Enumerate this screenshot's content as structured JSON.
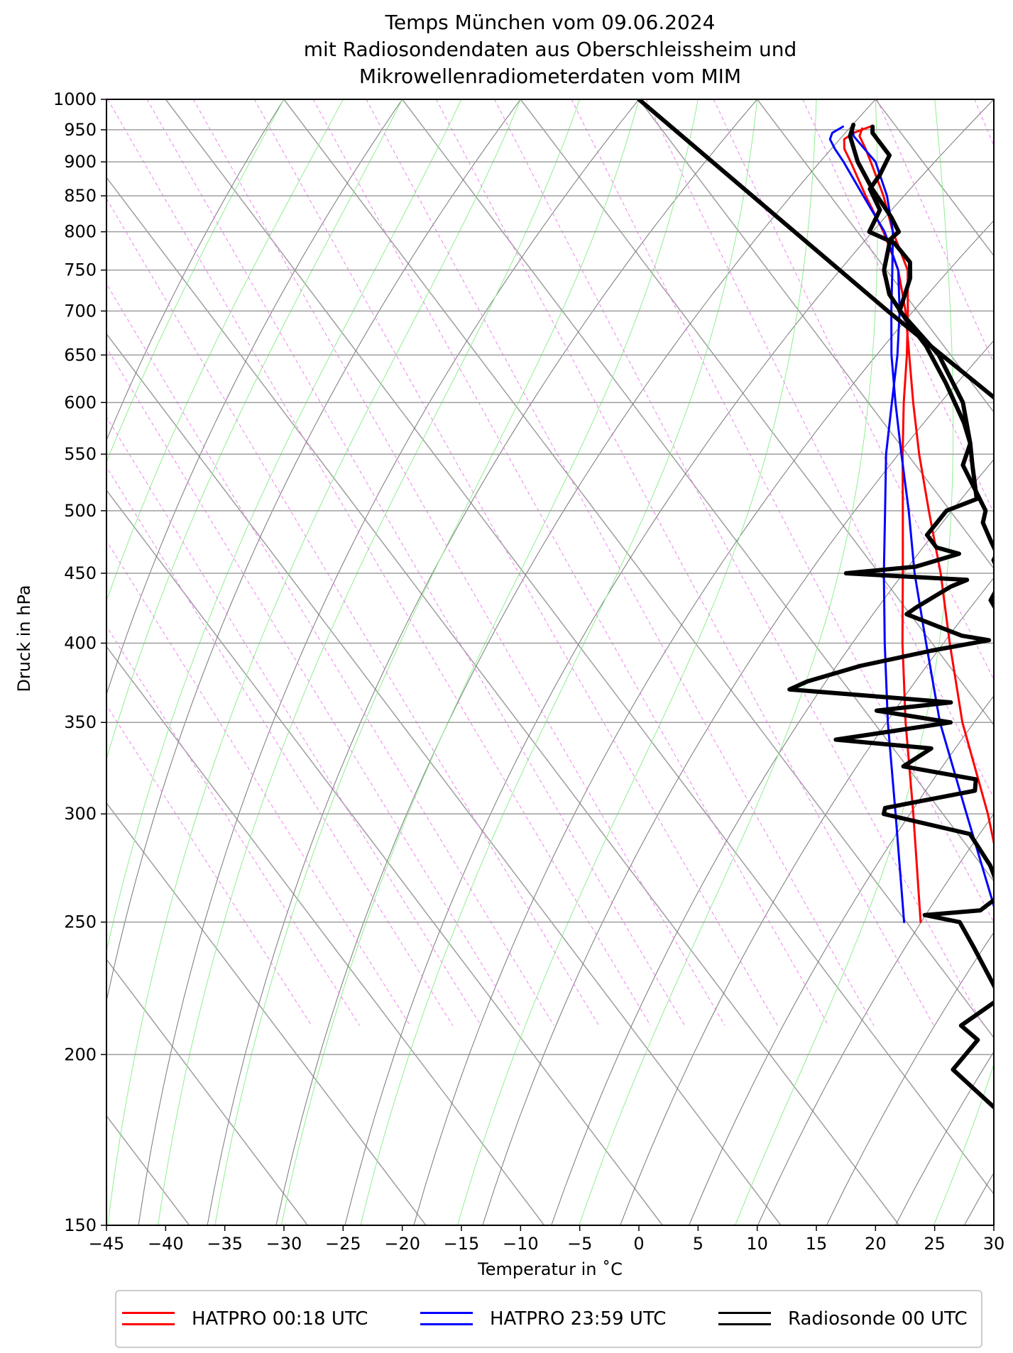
{
  "chart_data": {
    "type": "line",
    "subtype": "skew-T log-p diagram",
    "title_lines": [
      "Temps München vom 09.06.2024",
      "mit Radiosondendaten aus Oberschleissheim und",
      "Mikrowellenradiometerdaten vom MIM"
    ],
    "xlabel": "Temperatur in $^\\circ$C",
    "xlabel_display": "Temperatur in ˚C",
    "ylabel": "Druck in hPa",
    "xlim": [
      -45,
      30
    ],
    "ylim": [
      1000,
      150
    ],
    "y_scale": "log",
    "x_ticks": [
      -45,
      -40,
      -35,
      -30,
      -25,
      -20,
      -15,
      -10,
      -5,
      0,
      5,
      10,
      15,
      20,
      25,
      30
    ],
    "y_ticks": [
      150,
      200,
      250,
      300,
      350,
      400,
      450,
      500,
      550,
      600,
      650,
      700,
      750,
      800,
      850,
      900,
      950,
      1000
    ],
    "grid": true,
    "legend_position": "bottom-center",
    "series": [
      {
        "name": "HATPRO 00:18 UTC",
        "color": "#ff0000",
        "line_width": 3,
        "profiles": [
          [
            [
              952,
              17.0
            ],
            [
              940,
              16.3
            ],
            [
              920,
              16.0
            ],
            [
              900,
              15.6
            ],
            [
              850,
              14.5
            ],
            [
              800,
              13.0
            ],
            [
              750,
              11.8
            ],
            [
              700,
              9.2
            ],
            [
              650,
              6.3
            ],
            [
              600,
              3.0
            ],
            [
              550,
              -0.4
            ],
            [
              500,
              -4.0
            ],
            [
              450,
              -8.0
            ],
            [
              400,
              -12.5
            ],
            [
              350,
              -17.3
            ],
            [
              300,
              -22.5
            ],
            [
              250,
              -28.8
            ]
          ],
          [
            [
              955,
              17.8
            ],
            [
              945,
              16.0
            ],
            [
              935,
              14.8
            ],
            [
              920,
              14.2
            ],
            [
              900,
              13.9
            ],
            [
              850,
              13.0
            ],
            [
              800,
              12.2
            ],
            [
              750,
              11.0
            ],
            [
              700,
              9.0
            ],
            [
              650,
              6.5
            ],
            [
              600,
              3.8
            ],
            [
              550,
              1.0
            ],
            [
              500,
              -1.8
            ],
            [
              450,
              -4.8
            ],
            [
              400,
              -8.5
            ],
            [
              350,
              -12.5
            ],
            [
              300,
              -16.2
            ],
            [
              250,
              -21.2
            ]
          ]
        ]
      },
      {
        "name": "HATPRO 23:59 UTC",
        "color": "#0000ff",
        "line_width": 3,
        "profiles": [
          [
            [
              955,
              15.5
            ],
            [
              945,
              14.2
            ],
            [
              935,
              13.6
            ],
            [
              920,
              13.4
            ],
            [
              900,
              13.3
            ],
            [
              850,
              12.8
            ],
            [
              800,
              12.3
            ],
            [
              750,
              11.0
            ],
            [
              700,
              8.5
            ],
            [
              650,
              5.5
            ],
            [
              600,
              2.0
            ],
            [
              550,
              -1.8
            ],
            [
              500,
              -5.5
            ],
            [
              450,
              -9.6
            ],
            [
              400,
              -14.0
            ],
            [
              350,
              -18.8
            ],
            [
              300,
              -24.0
            ],
            [
              250,
              -30.2
            ]
          ],
          [
            [
              955,
              16.3
            ],
            [
              940,
              15.8
            ],
            [
              920,
              15.9
            ],
            [
              900,
              16.0
            ],
            [
              850,
              14.8
            ],
            [
              800,
              13.0
            ],
            [
              750,
              10.5
            ],
            [
              700,
              7.8
            ],
            [
              650,
              5.0
            ],
            [
              600,
              2.3
            ],
            [
              550,
              -0.5
            ],
            [
              500,
              -3.5
            ],
            [
              450,
              -7.0
            ],
            [
              400,
              -10.5
            ],
            [
              350,
              -14.4
            ],
            [
              300,
              -18.0
            ],
            [
              250,
              -22.2
            ]
          ]
        ]
      },
      {
        "name": "Radiosonde 00 UTC",
        "color": "#000000",
        "line_width": 6,
        "profiles": [
          [
            [
              955,
              18.0
            ],
            [
              945,
              17.6
            ],
            [
              930,
              17.6
            ],
            [
              910,
              17.6
            ],
            [
              880,
              15.5
            ],
            [
              860,
              13.8
            ],
            [
              830,
              13.3
            ],
            [
              800,
              11.0
            ],
            [
              785,
              12.4
            ],
            [
              760,
              12.5
            ],
            [
              740,
              11.5
            ],
            [
              700,
              8.5
            ],
            [
              650,
              9.0
            ],
            [
              600,
              8.0
            ],
            [
              560,
              6.0
            ],
            [
              540,
              4.8
            ],
            [
              510,
              3.0
            ],
            [
              500,
              -0.3
            ],
            [
              480,
              -3.5
            ],
            [
              470,
              -3.5
            ],
            [
              465,
              -2.0
            ],
            [
              455,
              -6.5
            ],
            [
              450,
              -12.8
            ],
            [
              445,
              -3.0
            ],
            [
              440,
              -4.8
            ],
            [
              425,
              -9.0
            ],
            [
              420,
              -10.3
            ],
            [
              405,
              -7.0
            ],
            [
              402,
              -5.0
            ],
            [
              395,
              -10.5
            ],
            [
              385,
              -17.5
            ],
            [
              375,
              -23.0
            ],
            [
              370,
              -25.0
            ],
            [
              362,
              -12.2
            ],
            [
              357,
              -19.0
            ],
            [
              350,
              -13.5
            ],
            [
              340,
              -24.3
            ],
            [
              335,
              -16.8
            ],
            [
              325,
              -20.3
            ],
            [
              318,
              -15.0
            ],
            [
              312,
              -15.8
            ],
            [
              303,
              -24.5
            ],
            [
              300,
              -25.0
            ],
            [
              290,
              -19.0
            ],
            [
              275,
              -19.3
            ],
            [
              262,
              -20.2
            ],
            [
              255,
              -23.0
            ],
            [
              253,
              -28.0
            ],
            [
              250,
              -25.5
            ],
            [
              240,
              -25.9
            ],
            [
              220,
              -26.9
            ],
            [
              210,
              -32.0
            ],
            [
              205,
              -31.5
            ],
            [
              195,
              -35.5
            ],
            [
              168,
              -33.0
            ],
            [
              150,
              -26.0
            ]
          ],
          [
            [
              958,
              16.5
            ],
            [
              940,
              15.5
            ],
            [
              900,
              14.5
            ],
            [
              860,
              14.0
            ],
            [
              820,
              13.8
            ],
            [
              800,
              13.5
            ],
            [
              790,
              12.3
            ],
            [
              750,
              9.8
            ],
            [
              720,
              8.7
            ],
            [
              690,
              8.5
            ],
            [
              660,
              8.5
            ],
            [
              620,
              7.8
            ],
            [
              580,
              6.8
            ],
            [
              560,
              6.0
            ],
            [
              540,
              4.0
            ],
            [
              500,
              3.0
            ],
            [
              490,
              2.0
            ],
            [
              475,
              1.5
            ],
            [
              465,
              1.2
            ],
            [
              460,
              0.5
            ],
            [
              450,
              0.2
            ],
            [
              445,
              0.3
            ],
            [
              440,
              -0.8
            ],
            [
              430,
              -2.3
            ],
            [
              420,
              -2.5
            ],
            [
              410,
              -3.5
            ],
            [
              400,
              -4.2
            ],
            [
              385,
              -6.0
            ],
            [
              370,
              -7.0
            ],
            [
              360,
              -8.3
            ],
            [
              350,
              -8.2
            ],
            [
              330,
              -9.2
            ],
            [
              320,
              -10.8
            ],
            [
              305,
              -11.0
            ],
            [
              295,
              -12.2
            ],
            [
              260,
              -14.0
            ],
            [
              255,
              -13.3
            ],
            [
              250,
              -12.8
            ],
            [
              220,
              -15.5
            ],
            [
              210,
              -17.2
            ],
            [
              200,
              -15.8
            ],
            [
              185,
              -11.5
            ],
            [
              168,
              -5.0
            ],
            [
              150,
              -3.6
            ]
          ],
          [
            [
              1000,
              0.0
            ],
            [
              700,
              7.5
            ],
            [
              150,
              44.0
            ]
          ]
        ]
      }
    ],
    "background_lines": [
      {
        "kind": "isotherms",
        "color": "#9e9e9e",
        "values_deg_c": [
          -110,
          -100,
          -90,
          -80,
          -70,
          -60,
          -50,
          -40,
          -30,
          -20,
          -10,
          0,
          10,
          20,
          30
        ]
      },
      {
        "kind": "dry adiabats",
        "color": "#777777",
        "values_theta_deg_c": [
          -30,
          -20,
          -10,
          0,
          10,
          20,
          30,
          40,
          50,
          60,
          70,
          80,
          90,
          100,
          110,
          120,
          130,
          140,
          150
        ]
      },
      {
        "kind": "moist adiabats",
        "color": "#90ee90",
        "values_deg_c": [
          -30,
          -25,
          -20,
          -15,
          -10,
          -5,
          0,
          5,
          10,
          15,
          20,
          25,
          30,
          35
        ]
      },
      {
        "kind": "mixing ratio lines",
        "color": "#ee82ee",
        "values_g_per_kg": [
          0.001,
          0.002,
          0.004,
          0.007,
          0.01,
          0.016,
          0.024,
          0.04,
          0.07,
          0.1,
          0.15,
          0.25,
          0.4,
          0.6,
          1,
          1.5,
          2.5,
          4,
          6,
          10,
          15,
          25,
          40
        ],
        "top_hpa": 205
      }
    ]
  },
  "legend": {
    "items": [
      {
        "label": "HATPRO 00:18 UTC",
        "color": "#ff0000"
      },
      {
        "label": "HATPRO 23:59 UTC",
        "color": "#0000ff"
      },
      {
        "label": "Radiosonde 00 UTC",
        "color": "#000000"
      }
    ]
  }
}
